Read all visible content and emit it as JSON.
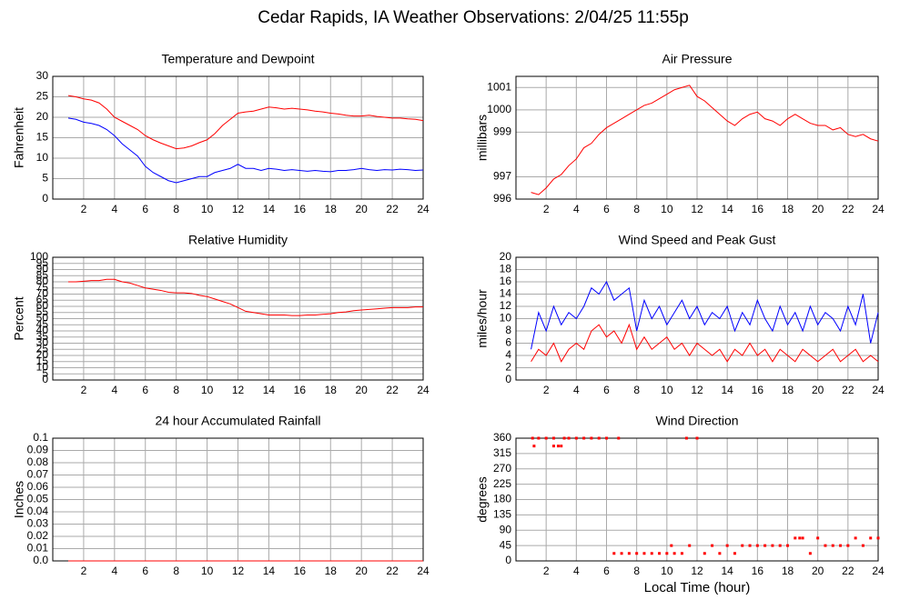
{
  "title": "Cedar Rapids, IA Weather Observations: 2/04/25 11:55p",
  "chart_data": [
    {
      "type": "line",
      "title": "Temperature and Dewpoint",
      "ylabel": "Fahrenheit",
      "xlim": [
        0,
        24
      ],
      "xticks": [
        2,
        4,
        6,
        8,
        10,
        12,
        14,
        16,
        18,
        20,
        22,
        24
      ],
      "ylim": [
        0,
        30
      ],
      "yticks": [
        0,
        5,
        10,
        15,
        20,
        25,
        30
      ],
      "grid": true,
      "x": [
        1,
        1.5,
        2,
        2.5,
        3,
        3.5,
        4,
        4.5,
        5,
        5.5,
        6,
        6.5,
        7,
        7.5,
        8,
        8.5,
        9,
        9.5,
        10,
        10.5,
        11,
        11.5,
        12,
        12.5,
        13,
        13.5,
        14,
        14.5,
        15,
        15.5,
        16,
        16.5,
        17,
        17.5,
        18,
        18.5,
        19,
        19.5,
        20,
        20.5,
        21,
        21.5,
        22,
        22.5,
        23,
        23.5,
        24
      ],
      "series": [
        {
          "color": "#ff0000",
          "values": [
            25.3,
            25,
            24.5,
            24.2,
            23.5,
            22,
            20,
            19,
            18,
            17,
            15.5,
            14.5,
            13.7,
            13,
            12.3,
            12.5,
            13,
            13.8,
            14.5,
            16,
            18,
            19.5,
            21,
            21.3,
            21.5,
            22,
            22.5,
            22.3,
            22,
            22.2,
            22,
            21.8,
            21.5,
            21.3,
            21,
            20.8,
            20.5,
            20.3,
            20.3,
            20.5,
            20.2,
            20,
            19.8,
            19.8,
            19.6,
            19.5,
            19.2
          ]
        },
        {
          "color": "#0000ff",
          "values": [
            19.8,
            19.5,
            18.8,
            18.5,
            18,
            17,
            15.5,
            13.5,
            12,
            10.5,
            8,
            6.5,
            5.5,
            4.5,
            4,
            4.5,
            5,
            5.5,
            5.5,
            6.5,
            7,
            7.5,
            8.5,
            7.5,
            7.5,
            7,
            7.5,
            7.3,
            7,
            7.2,
            7,
            6.8,
            7,
            6.8,
            6.7,
            7,
            7,
            7.2,
            7.5,
            7.2,
            7,
            7.2,
            7.1,
            7.3,
            7.2,
            7,
            7.1
          ]
        }
      ]
    },
    {
      "type": "line",
      "title": "Air Pressure",
      "ylabel": "millibars",
      "xlim": [
        0,
        24
      ],
      "xticks": [
        2,
        4,
        6,
        8,
        10,
        12,
        14,
        16,
        18,
        20,
        22,
        24
      ],
      "ylim": [
        996,
        1001.5
      ],
      "yticks": [
        996,
        997,
        999,
        1000,
        1001
      ],
      "grid": true,
      "x": [
        1,
        1.5,
        2,
        2.5,
        3,
        3.5,
        4,
        4.5,
        5,
        5.5,
        6,
        6.5,
        7,
        7.5,
        8,
        8.5,
        9,
        9.5,
        10,
        10.5,
        11,
        11.5,
        12,
        12.5,
        13,
        13.5,
        14,
        14.5,
        15,
        15.5,
        16,
        16.5,
        17,
        17.5,
        18,
        18.5,
        19,
        19.5,
        20,
        20.5,
        21,
        21.5,
        22,
        22.5,
        23,
        23.5,
        24
      ],
      "series": [
        {
          "color": "#ff0000",
          "values": [
            996.3,
            996.2,
            996.5,
            996.9,
            997.1,
            997.5,
            997.8,
            998.3,
            998.5,
            998.9,
            999.2,
            999.4,
            999.6,
            999.8,
            1000,
            1000.2,
            1000.3,
            1000.5,
            1000.7,
            1000.9,
            1001,
            1001.1,
            1000.6,
            1000.4,
            1000.1,
            999.8,
            999.5,
            999.3,
            999.6,
            999.8,
            999.9,
            999.6,
            999.5,
            999.3,
            999.6,
            999.8,
            999.6,
            999.4,
            999.3,
            999.3,
            999.1,
            999.2,
            998.9,
            998.8,
            998.9,
            998.7,
            998.6
          ]
        }
      ]
    },
    {
      "type": "line",
      "title": "Relative Humidity",
      "ylabel": "Percent",
      "xlim": [
        0,
        24
      ],
      "xticks": [
        2,
        4,
        6,
        8,
        10,
        12,
        14,
        16,
        18,
        20,
        22,
        24
      ],
      "ylim": [
        0,
        100
      ],
      "yticks": [
        0,
        5,
        10,
        15,
        20,
        25,
        30,
        35,
        40,
        45,
        50,
        55,
        60,
        65,
        70,
        75,
        80,
        85,
        90,
        95,
        100
      ],
      "grid": true,
      "x": [
        1,
        1.5,
        2,
        2.5,
        3,
        3.5,
        4,
        4.5,
        5,
        5.5,
        6,
        6.5,
        7,
        7.5,
        8,
        8.5,
        9,
        9.5,
        10,
        10.5,
        11,
        11.5,
        12,
        12.5,
        13,
        13.5,
        14,
        14.5,
        15,
        15.5,
        16,
        16.5,
        17,
        17.5,
        18,
        18.5,
        19,
        19.5,
        20,
        20.5,
        21,
        21.5,
        22,
        22.5,
        23,
        23.5,
        24
      ],
      "series": [
        {
          "color": "#ff0000",
          "values": [
            80,
            80,
            80.5,
            81,
            81,
            82,
            82,
            80,
            79,
            77,
            75,
            74,
            73,
            71.5,
            71,
            71,
            70.5,
            69,
            68,
            66,
            64,
            62,
            59,
            56,
            55,
            54,
            53,
            53,
            53,
            52.5,
            52.5,
            53,
            53,
            53.5,
            54,
            55,
            55.5,
            56.5,
            57,
            57.5,
            58,
            58.5,
            59,
            59,
            59,
            59.5,
            59.5
          ]
        }
      ]
    },
    {
      "type": "line",
      "title": "Wind Speed and Peak Gust",
      "ylabel": "miles/hour",
      "xlim": [
        0,
        24
      ],
      "xticks": [
        2,
        4,
        6,
        8,
        10,
        12,
        14,
        16,
        18,
        20,
        22,
        24
      ],
      "ylim": [
        0,
        20
      ],
      "yticks": [
        0,
        2,
        4,
        6,
        8,
        10,
        12,
        14,
        16,
        18,
        20
      ],
      "grid": true,
      "x": [
        1,
        1.5,
        2,
        2.5,
        3,
        3.5,
        4,
        4.5,
        5,
        5.5,
        6,
        6.5,
        7,
        7.5,
        8,
        8.5,
        9,
        9.5,
        10,
        10.5,
        11,
        11.5,
        12,
        12.5,
        13,
        13.5,
        14,
        14.5,
        15,
        15.5,
        16,
        16.5,
        17,
        17.5,
        18,
        18.5,
        19,
        19.5,
        20,
        20.5,
        21,
        21.5,
        22,
        22.5,
        23,
        23.5,
        24
      ],
      "series": [
        {
          "color": "#ff0000",
          "values": [
            3,
            5,
            4,
            6,
            3,
            5,
            6,
            5,
            8,
            9,
            7,
            8,
            6,
            9,
            5,
            7,
            5,
            6,
            7,
            5,
            6,
            4,
            6,
            5,
            4,
            5,
            3,
            5,
            4,
            6,
            4,
            5,
            3,
            5,
            4,
            3,
            5,
            4,
            3,
            4,
            5,
            3,
            4,
            5,
            3,
            4,
            3
          ]
        },
        {
          "color": "#0000ff",
          "values": [
            5,
            11,
            8,
            12,
            9,
            11,
            10,
            12,
            15,
            14,
            16,
            13,
            14,
            15,
            8,
            13,
            10,
            12,
            9,
            11,
            13,
            10,
            12,
            9,
            11,
            10,
            12,
            8,
            11,
            9,
            13,
            10,
            8,
            12,
            9,
            11,
            8,
            12,
            9,
            11,
            10,
            8,
            12,
            9,
            14,
            6,
            11
          ]
        }
      ]
    },
    {
      "type": "line",
      "title": "24 hour Accumulated Rainfall",
      "ylabel": "Inches",
      "xlim": [
        0,
        24
      ],
      "xticks": [
        2,
        4,
        6,
        8,
        10,
        12,
        14,
        16,
        18,
        20,
        22,
        24
      ],
      "ylim": [
        0,
        0.1
      ],
      "yticks": [
        {
          "value": 0,
          "label": "0.0"
        },
        0.01,
        0.02,
        0.03,
        0.04,
        0.05,
        0.06,
        0.07,
        0.08,
        0.09,
        0.1
      ],
      "grid": true,
      "x": [
        1,
        24
      ],
      "series": [
        {
          "color": "#ff0000",
          "values": [
            0,
            0
          ]
        }
      ]
    },
    {
      "type": "scatter",
      "title": "Wind Direction",
      "ylabel": "degrees",
      "xlabel": "Local Time (hour)",
      "xlim": [
        0,
        24
      ],
      "xticks": [
        2,
        4,
        6,
        8,
        10,
        12,
        14,
        16,
        18,
        20,
        22,
        24
      ],
      "ylim": [
        0,
        360
      ],
      "yticks": [
        0,
        45,
        90,
        135,
        180,
        225,
        270,
        315,
        360
      ],
      "grid": true,
      "x": [
        1.1,
        1.2,
        1.5,
        2,
        2.5,
        2.5,
        2.8,
        3,
        3.2,
        3.5,
        4,
        4.5,
        5,
        5.5,
        6,
        6.5,
        6.8,
        7,
        7.5,
        8,
        8.5,
        9,
        9.5,
        10,
        10.3,
        10.5,
        11,
        11.3,
        11.5,
        12,
        12.5,
        13,
        13.5,
        14,
        14.5,
        15,
        15.5,
        16,
        16.5,
        17,
        17.5,
        18,
        18.5,
        18.8,
        19,
        19.5,
        20,
        20.5,
        21,
        21.5,
        22,
        22.5,
        23,
        23.5,
        24
      ],
      "series": [
        {
          "color": "#ff0000",
          "values": [
            360,
            337,
            360,
            360,
            360,
            337,
            337,
            337,
            360,
            360,
            360,
            360,
            360,
            360,
            360,
            22,
            360,
            22,
            22,
            22,
            22,
            22,
            22,
            22,
            45,
            22,
            22,
            360,
            45,
            360,
            22,
            45,
            22,
            45,
            22,
            45,
            45,
            45,
            45,
            45,
            45,
            45,
            67,
            67,
            67,
            22,
            67,
            45,
            45,
            45,
            45,
            67,
            45,
            67,
            67
          ]
        }
      ]
    }
  ]
}
